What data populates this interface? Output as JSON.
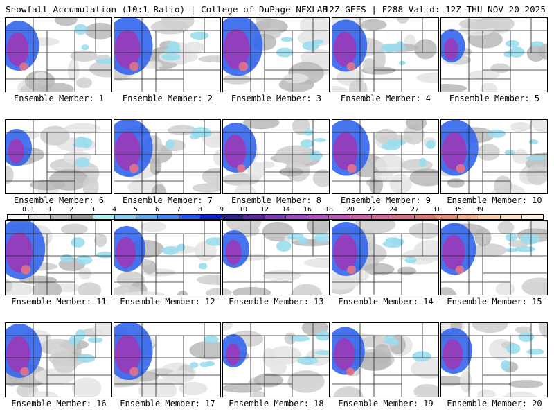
{
  "header": {
    "title": "Snowfall Accumulation (10:1 Ratio) | College of DuPage NEXLAB",
    "run_info": "12Z GEFS | F288 Valid: 12Z THU NOV 20 2025"
  },
  "colorbar": {
    "labels": [
      "0.1",
      "1",
      "2",
      "3",
      "4",
      "5",
      "6",
      "7",
      "8",
      "9",
      "10",
      "12",
      "14",
      "16",
      "18",
      "20",
      "22",
      "24",
      "27",
      "31",
      "35",
      "39"
    ],
    "colors": [
      "#f4f4f4",
      "#dddddd",
      "#bbbbbb",
      "#999999",
      "#aaeeee",
      "#88ccee",
      "#66aaee",
      "#4488ee",
      "#2255ee",
      "#1122cc",
      "#2a2090",
      "#5a2aa0",
      "#7a3ab8",
      "#9a4ac8",
      "#b050c0",
      "#c058b8",
      "#d060a8",
      "#d46898",
      "#d87088",
      "#e07878",
      "#e89080",
      "#f0b090",
      "#f6cca8",
      "#fae0c8",
      "#fdf0e0"
    ]
  },
  "panels": [
    {
      "label": "Ensemble Member: 1",
      "intensity": 0.7
    },
    {
      "label": "Ensemble Member: 2",
      "intensity": 0.9
    },
    {
      "label": "Ensemble Member: 3",
      "intensity": 0.95
    },
    {
      "label": "Ensemble Member: 4",
      "intensity": 0.75
    },
    {
      "label": "Ensemble Member: 5",
      "intensity": 0.3
    },
    {
      "label": "Ensemble Member: 6",
      "intensity": 0.4
    },
    {
      "label": "Ensemble Member: 7",
      "intensity": 0.9
    },
    {
      "label": "Ensemble Member: 8",
      "intensity": 0.7
    },
    {
      "label": "Ensemble Member: 9",
      "intensity": 0.85
    },
    {
      "label": "Ensemble Member: 10",
      "intensity": 0.85
    },
    {
      "label": "Ensemble Member: 11",
      "intensity": 0.95
    },
    {
      "label": "Ensemble Member: 12",
      "intensity": 0.6
    },
    {
      "label": "Ensemble Member: 13",
      "intensity": 0.4
    },
    {
      "label": "Ensemble Member: 14",
      "intensity": 0.8
    },
    {
      "label": "Ensemble Member: 15",
      "intensity": 0.75
    },
    {
      "label": "Ensemble Member: 16",
      "intensity": 0.8
    },
    {
      "label": "Ensemble Member: 17",
      "intensity": 0.9
    },
    {
      "label": "Ensemble Member: 18",
      "intensity": 0.3
    },
    {
      "label": "Ensemble Member: 19",
      "intensity": 0.65
    },
    {
      "label": "Ensemble Member: 20",
      "intensity": 0.6
    }
  ]
}
